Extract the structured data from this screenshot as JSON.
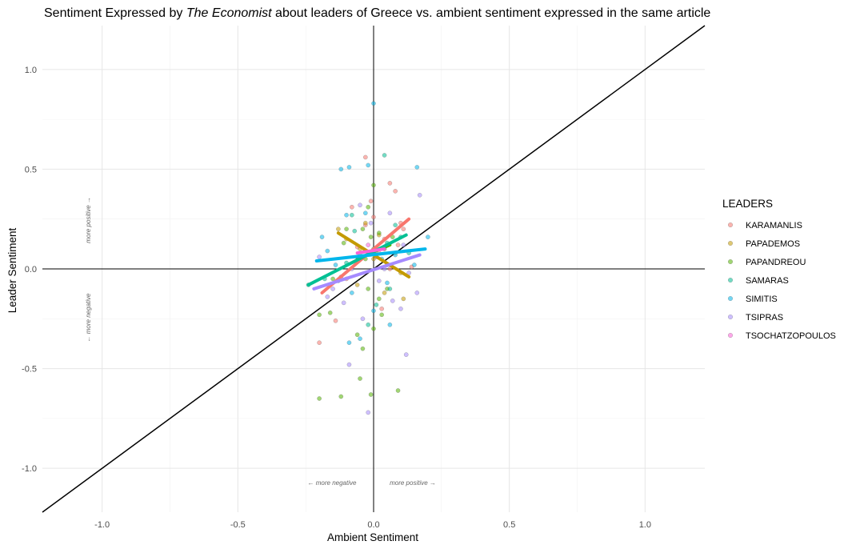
{
  "chart_data": {
    "type": "scatter",
    "title": {
      "prefix": "Sentiment Expressed by ",
      "italic": "The Economist",
      "suffix": " about leaders of Greece vs. ambient sentiment expressed in the same article"
    },
    "xlabel": "Ambient Sentiment",
    "ylabel": "Leader Sentiment",
    "xlim": [
      -1.22,
      1.22
    ],
    "ylim": [
      -1.22,
      1.22
    ],
    "x_ticks": [
      -1.0,
      -0.5,
      0.0,
      0.5,
      1.0
    ],
    "y_ticks": [
      -1.0,
      -0.5,
      0.0,
      0.5,
      1.0
    ],
    "x_tick_labels": [
      "-1.0",
      "-0.5",
      "0.0",
      "0.5",
      "1.0"
    ],
    "y_tick_labels": [
      "-1.0",
      "-0.5",
      "0.0",
      "0.5",
      "1.0"
    ],
    "grid": true,
    "legend": {
      "title": "LEADERS",
      "position": "right"
    },
    "reference_lines": {
      "diagonal": "y = x",
      "horizontal_zero": true,
      "vertical_zero": true
    },
    "annotations": {
      "y_positive": "more positive →",
      "y_negative": "← more negative",
      "x_negative": "← more negative",
      "x_positive": "more positive →"
    },
    "series": [
      {
        "name": "KARAMANLIS",
        "color": "#F8766D",
        "trend": [
          [
            -0.19,
            -0.12
          ],
          [
            0.13,
            0.25
          ]
        ],
        "points": [
          [
            -0.2,
            -0.37
          ],
          [
            -0.14,
            -0.26
          ],
          [
            -0.1,
            -0.05
          ],
          [
            -0.06,
            0.11
          ],
          [
            -0.03,
            0.22
          ],
          [
            -0.01,
            0.34
          ],
          [
            0.0,
            0.26
          ],
          [
            -0.03,
            0.56
          ],
          [
            0.06,
            0.43
          ],
          [
            0.08,
            0.39
          ],
          [
            0.1,
            0.23
          ],
          [
            0.04,
            0.15
          ],
          [
            0.02,
            0.08
          ],
          [
            0.11,
            0.2
          ],
          [
            0.06,
            0.0
          ],
          [
            -0.08,
            0.31
          ],
          [
            0.14,
            0.01
          ],
          [
            -0.12,
            -0.04
          ],
          [
            0.03,
            -0.2
          ],
          [
            0.09,
            0.12
          ]
        ]
      },
      {
        "name": "PAPADEMOS",
        "color": "#C49A00",
        "trend": [
          [
            -0.13,
            0.18
          ],
          [
            0.13,
            -0.04
          ]
        ],
        "points": [
          [
            -0.13,
            0.2
          ],
          [
            -0.1,
            0.15
          ],
          [
            -0.05,
            0.1
          ],
          [
            0.0,
            0.05
          ],
          [
            0.05,
            0.02
          ],
          [
            0.1,
            -0.02
          ],
          [
            -0.03,
            0.23
          ],
          [
            0.02,
            0.17
          ],
          [
            0.08,
            0.08
          ],
          [
            -0.06,
            -0.08
          ],
          [
            0.04,
            -0.12
          ],
          [
            0.11,
            -0.15
          ]
        ]
      },
      {
        "name": "PAPANDREOU",
        "color": "#53B400",
        "trend": [
          [
            -0.06,
            0.05
          ],
          [
            0.06,
            0.12
          ]
        ],
        "points": [
          [
            -0.2,
            -0.65
          ],
          [
            -0.12,
            -0.64
          ],
          [
            0.09,
            -0.61
          ],
          [
            -0.01,
            -0.63
          ],
          [
            -0.05,
            -0.55
          ],
          [
            -0.04,
            -0.4
          ],
          [
            -0.06,
            -0.33
          ],
          [
            0.0,
            -0.3
          ],
          [
            0.02,
            -0.15
          ],
          [
            -0.02,
            -0.1
          ],
          [
            0.0,
            0.42
          ],
          [
            -0.02,
            0.31
          ],
          [
            -0.04,
            0.2
          ],
          [
            0.02,
            0.18
          ],
          [
            -0.03,
            0.05
          ],
          [
            0.04,
            0.1
          ],
          [
            -0.1,
            0.2
          ],
          [
            -0.16,
            -0.22
          ],
          [
            -0.2,
            -0.23
          ],
          [
            0.03,
            -0.23
          ],
          [
            -0.01,
            0.16
          ],
          [
            0.07,
            0.16
          ],
          [
            -0.15,
            -0.05
          ],
          [
            0.05,
            -0.1
          ],
          [
            -0.11,
            0.13
          ]
        ]
      },
      {
        "name": "SAMARAS",
        "color": "#00C094",
        "trend": [
          [
            -0.24,
            -0.08
          ],
          [
            0.12,
            0.17
          ]
        ],
        "points": [
          [
            -0.24,
            -0.08
          ],
          [
            -0.18,
            -0.05
          ],
          [
            -0.1,
            0.03
          ],
          [
            -0.05,
            0.07
          ],
          [
            0.0,
            0.1
          ],
          [
            0.05,
            0.13
          ],
          [
            0.1,
            0.16
          ],
          [
            0.04,
            0.57
          ],
          [
            -0.08,
            0.27
          ],
          [
            0.13,
            0.08
          ],
          [
            -0.13,
            -0.06
          ],
          [
            0.06,
            -0.1
          ],
          [
            -0.02,
            -0.28
          ],
          [
            0.01,
            -0.18
          ],
          [
            0.08,
            0.22
          ],
          [
            -0.07,
            0.19
          ]
        ]
      },
      {
        "name": "SIMITIS",
        "color": "#00B6EB",
        "trend": [
          [
            -0.21,
            0.04
          ],
          [
            0.19,
            0.1
          ]
        ],
        "points": [
          [
            0.0,
            0.83
          ],
          [
            -0.12,
            0.5
          ],
          [
            -0.09,
            0.51
          ],
          [
            -0.02,
            0.52
          ],
          [
            0.16,
            0.51
          ],
          [
            -0.03,
            0.28
          ],
          [
            -0.1,
            0.27
          ],
          [
            -0.19,
            0.16
          ],
          [
            0.03,
            0.05
          ],
          [
            0.08,
            0.07
          ],
          [
            0.15,
            0.02
          ],
          [
            0.2,
            0.16
          ],
          [
            -0.14,
            0.02
          ],
          [
            -0.08,
            -0.12
          ],
          [
            0.0,
            -0.21
          ],
          [
            0.05,
            -0.07
          ],
          [
            -0.05,
            -0.35
          ],
          [
            -0.09,
            -0.37
          ],
          [
            0.06,
            -0.28
          ],
          [
            -0.17,
            0.09
          ]
        ]
      },
      {
        "name": "TSIPRAS",
        "color": "#A58AFF",
        "trend": [
          [
            -0.22,
            -0.1
          ],
          [
            0.17,
            0.07
          ]
        ],
        "points": [
          [
            -0.02,
            -0.72
          ],
          [
            -0.09,
            -0.48
          ],
          [
            0.12,
            -0.43
          ],
          [
            -0.04,
            -0.25
          ],
          [
            0.1,
            -0.2
          ],
          [
            0.16,
            -0.12
          ],
          [
            -0.15,
            -0.1
          ],
          [
            -0.08,
            0.0
          ],
          [
            0.04,
            0.0
          ],
          [
            -0.2,
            0.06
          ],
          [
            0.17,
            0.37
          ],
          [
            0.06,
            0.28
          ],
          [
            -0.05,
            0.32
          ],
          [
            0.11,
            0.12
          ],
          [
            -0.11,
            -0.17
          ],
          [
            0.02,
            -0.06
          ],
          [
            0.13,
            -0.02
          ],
          [
            -0.17,
            -0.14
          ],
          [
            0.07,
            -0.16
          ],
          [
            -0.01,
            0.23
          ]
        ]
      },
      {
        "name": "TSOCHATZOPOULOS",
        "color": "#FB61D7",
        "trend": [
          [
            -0.06,
            0.08
          ],
          [
            0.04,
            0.1
          ]
        ],
        "points": [
          [
            -0.02,
            0.12
          ],
          [
            0.01,
            0.06
          ]
        ]
      }
    ]
  }
}
